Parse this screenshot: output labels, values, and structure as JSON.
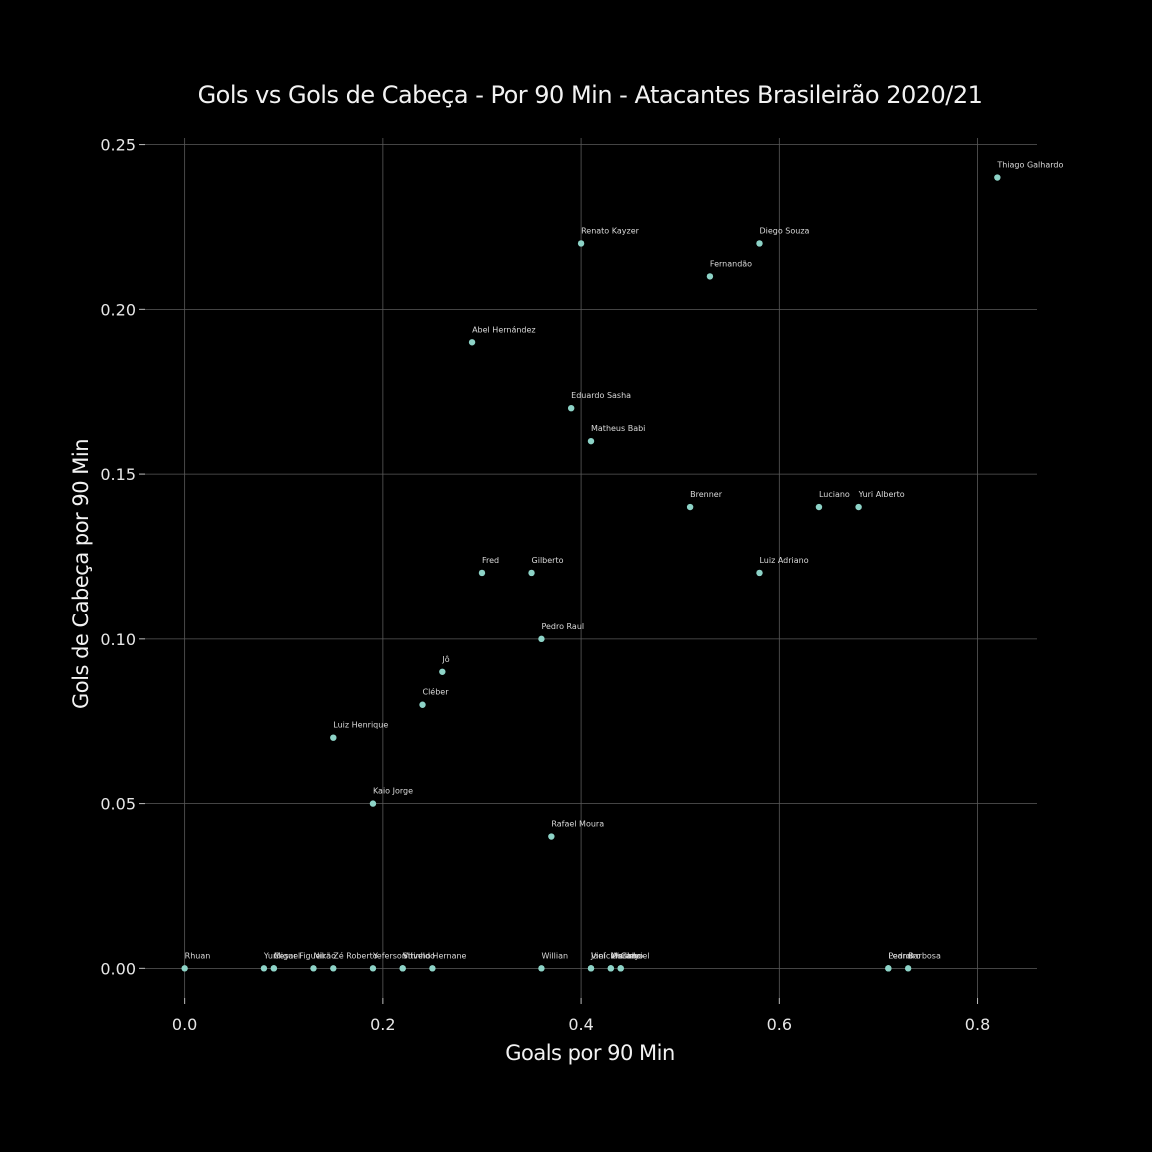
{
  "colors": {
    "background": "#000000",
    "point": "#8dd3c7",
    "grid": "#5a5a5a",
    "text": "#f2f2f2"
  },
  "chart_data": {
    "type": "scatter",
    "title": "Gols vs Gols de Cabeça - Por 90 Min - Atacantes Brasileirão 2020/21",
    "xlabel": "Goals por 90 Min",
    "ylabel": "Gols de Cabeça por 90 Min",
    "xlim": [
      -0.04,
      0.86
    ],
    "ylim": [
      -0.009,
      0.252
    ],
    "xticks": [
      0.0,
      0.2,
      0.4,
      0.6,
      0.8
    ],
    "xtick_labels": [
      "0.0",
      "0.2",
      "0.4",
      "0.6",
      "0.8"
    ],
    "yticks": [
      0.0,
      0.05,
      0.1,
      0.15,
      0.2,
      0.25
    ],
    "ytick_labels": [
      "0.00",
      "0.05",
      "0.10",
      "0.15",
      "0.20",
      "0.25"
    ],
    "grid": true,
    "points": [
      {
        "label": "Thiago Galhardo",
        "x": 0.82,
        "y": 0.24
      },
      {
        "label": "Renato Kayzer",
        "x": 0.4,
        "y": 0.22
      },
      {
        "label": "Diego Souza",
        "x": 0.58,
        "y": 0.22
      },
      {
        "label": "Fernandão",
        "x": 0.53,
        "y": 0.21
      },
      {
        "label": "Abel Hernández",
        "x": 0.29,
        "y": 0.19
      },
      {
        "label": "Eduardo Sasha",
        "x": 0.39,
        "y": 0.17
      },
      {
        "label": "Matheus Babi",
        "x": 0.41,
        "y": 0.16
      },
      {
        "label": "Brenner",
        "x": 0.51,
        "y": 0.14
      },
      {
        "label": "Luciano",
        "x": 0.64,
        "y": 0.14
      },
      {
        "label": "Yuri Alberto",
        "x": 0.68,
        "y": 0.14
      },
      {
        "label": "Fred",
        "x": 0.3,
        "y": 0.12
      },
      {
        "label": "Gilberto",
        "x": 0.35,
        "y": 0.12
      },
      {
        "label": "Luiz Adriano",
        "x": 0.58,
        "y": 0.12
      },
      {
        "label": "Pedro Raul",
        "x": 0.36,
        "y": 0.1
      },
      {
        "label": "Jô",
        "x": 0.26,
        "y": 0.09
      },
      {
        "label": "Cléber",
        "x": 0.24,
        "y": 0.08
      },
      {
        "label": "Luiz Henrique",
        "x": 0.15,
        "y": 0.07
      },
      {
        "label": "Kaio Jorge",
        "x": 0.19,
        "y": 0.05
      },
      {
        "label": "Rafael Moura",
        "x": 0.37,
        "y": 0.04
      },
      {
        "label": "Rhuan",
        "x": 0.0,
        "y": 0.0
      },
      {
        "label": "Yuri",
        "x": 0.08,
        "y": 0.0
      },
      {
        "label": "Miguel",
        "x": 0.09,
        "y": 0.0
      },
      {
        "label": "Cesar Figueira",
        "x": 0.09,
        "y": 0.0
      },
      {
        "label": "Nikão",
        "x": 0.13,
        "y": 0.0
      },
      {
        "label": "Zé Roberto",
        "x": 0.15,
        "y": 0.0
      },
      {
        "label": "Yeferson",
        "x": 0.19,
        "y": 0.0
      },
      {
        "label": "Vitinho",
        "x": 0.22,
        "y": 0.0
      },
      {
        "label": "Stiveldo",
        "x": 0.22,
        "y": 0.0
      },
      {
        "label": "Hernane",
        "x": 0.25,
        "y": 0.0
      },
      {
        "label": "Willian",
        "x": 0.36,
        "y": 0.0
      },
      {
        "label": "Jael",
        "x": 0.41,
        "y": 0.0
      },
      {
        "label": "Vinícius",
        "x": 0.41,
        "y": 0.0
      },
      {
        "label": "Marinho",
        "x": 0.43,
        "y": 0.0
      },
      {
        "label": "Wesley",
        "x": 0.43,
        "y": 0.0
      },
      {
        "label": "Gabriel",
        "x": 0.44,
        "y": 0.0
      },
      {
        "label": "Cano",
        "x": 0.44,
        "y": 0.0
      },
      {
        "label": "Leandro",
        "x": 0.71,
        "y": 0.0
      },
      {
        "label": "Pedro",
        "x": 0.71,
        "y": 0.0
      },
      {
        "label": "Barbosa",
        "x": 0.73,
        "y": 0.0
      }
    ]
  }
}
